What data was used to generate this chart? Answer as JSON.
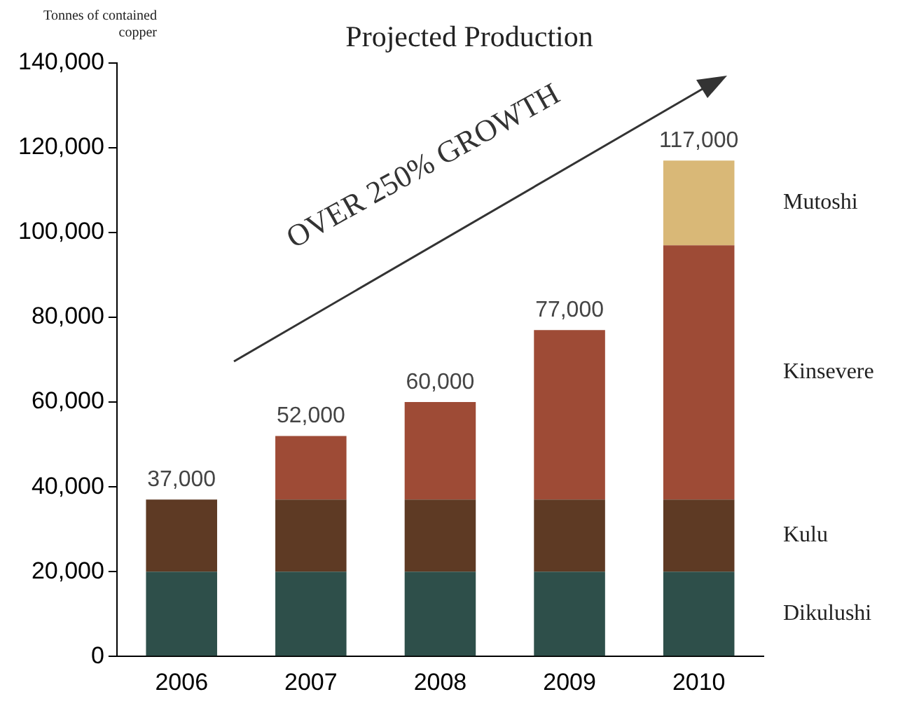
{
  "chart_data": {
    "type": "bar",
    "title": "Projected Production",
    "ylabel": "Tonnes of contained copper",
    "stacked": true,
    "categories": [
      "2006",
      "2007",
      "2008",
      "2009",
      "2010"
    ],
    "series": [
      {
        "name": "Dikulushi",
        "color": "#2e4f4a",
        "values": [
          20000,
          20000,
          20000,
          20000,
          20000
        ]
      },
      {
        "name": "Kulu",
        "color": "#5e3a24",
        "values": [
          17000,
          17000,
          17000,
          17000,
          17000
        ]
      },
      {
        "name": "Kinsevere",
        "color": "#9e4b36",
        "values": [
          0,
          15000,
          23000,
          40000,
          60000
        ]
      },
      {
        "name": "Mutoshi",
        "color": "#d9b877",
        "values": [
          0,
          0,
          0,
          0,
          20000
        ]
      }
    ],
    "totals": [
      "37,000",
      "52,000",
      "60,000",
      "77,000",
      "117,000"
    ],
    "annotations": [
      "OVER 250% GROWTH"
    ],
    "ylim": [
      0,
      140000
    ],
    "yticks": [
      0,
      {
        "value": 20000,
        "label": "20,000"
      },
      {
        "value": 40000,
        "label": "40,000"
      },
      {
        "value": 60000,
        "label": "60,000"
      },
      {
        "value": 80000,
        "label": "80,000"
      },
      {
        "value": 100000,
        "label": "100,000"
      },
      {
        "value": 120000,
        "label": "120,000"
      },
      {
        "value": 140000,
        "label": "140,000"
      }
    ],
    "grid": false
  }
}
